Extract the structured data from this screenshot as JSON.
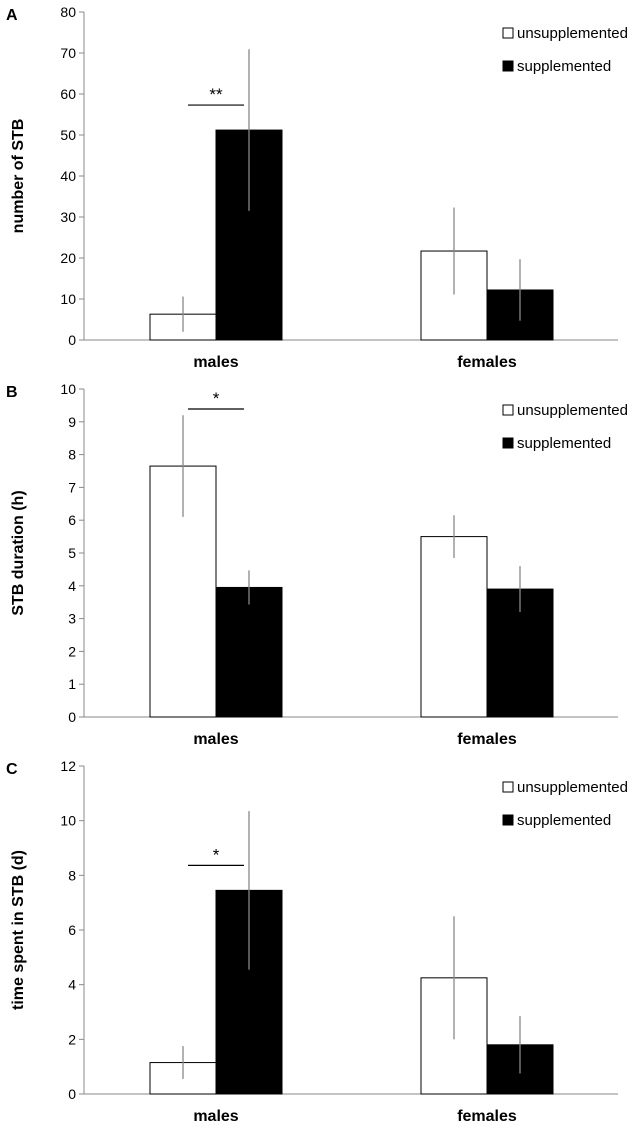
{
  "chart_data": [
    {
      "type": "bar",
      "panel_label": "A",
      "categories": [
        "males",
        "females"
      ],
      "series": [
        {
          "name": "unsupplemented",
          "color": "#ffffff",
          "values": [
            6.3,
            21.7
          ],
          "errors": [
            4.3,
            10.6
          ]
        },
        {
          "name": "supplemented",
          "color": "#000000",
          "values": [
            51.2,
            12.2
          ],
          "errors": [
            19.7,
            7.5
          ]
        }
      ],
      "ylabel": "number of STB",
      "ylim": [
        0,
        80
      ],
      "yticks": [
        0,
        10,
        20,
        30,
        40,
        50,
        60,
        70,
        80
      ],
      "significance": [
        {
          "category": "males",
          "label": "**"
        }
      ],
      "legend": "top-right"
    },
    {
      "type": "bar",
      "panel_label": "B",
      "categories": [
        "males",
        "females"
      ],
      "series": [
        {
          "name": "unsupplemented",
          "color": "#ffffff",
          "values": [
            7.65,
            5.5
          ],
          "errors": [
            1.55,
            0.65
          ]
        },
        {
          "name": "supplemented",
          "color": "#000000",
          "values": [
            3.95,
            3.9
          ],
          "errors": [
            0.52,
            0.7
          ]
        }
      ],
      "ylabel": "STB duration (h)",
      "ylim": [
        0,
        10
      ],
      "yticks": [
        0,
        1,
        2,
        3,
        4,
        5,
        6,
        7,
        8,
        9,
        10
      ],
      "significance": [
        {
          "category": "males",
          "label": "*"
        }
      ],
      "legend": "top-right"
    },
    {
      "type": "bar",
      "panel_label": "C",
      "categories": [
        "males",
        "females"
      ],
      "series": [
        {
          "name": "unsupplemented",
          "color": "#ffffff",
          "values": [
            1.15,
            4.25
          ],
          "errors": [
            0.6,
            2.25
          ]
        },
        {
          "name": "supplemented",
          "color": "#000000",
          "values": [
            7.45,
            1.8
          ],
          "errors": [
            2.9,
            1.05
          ]
        }
      ],
      "ylabel": "time spent in STB (d)",
      "ylim": [
        0,
        12
      ],
      "yticks": [
        0,
        2,
        4,
        6,
        8,
        10,
        12
      ],
      "significance": [
        {
          "category": "males",
          "label": "*"
        }
      ],
      "legend": "top-right"
    }
  ]
}
